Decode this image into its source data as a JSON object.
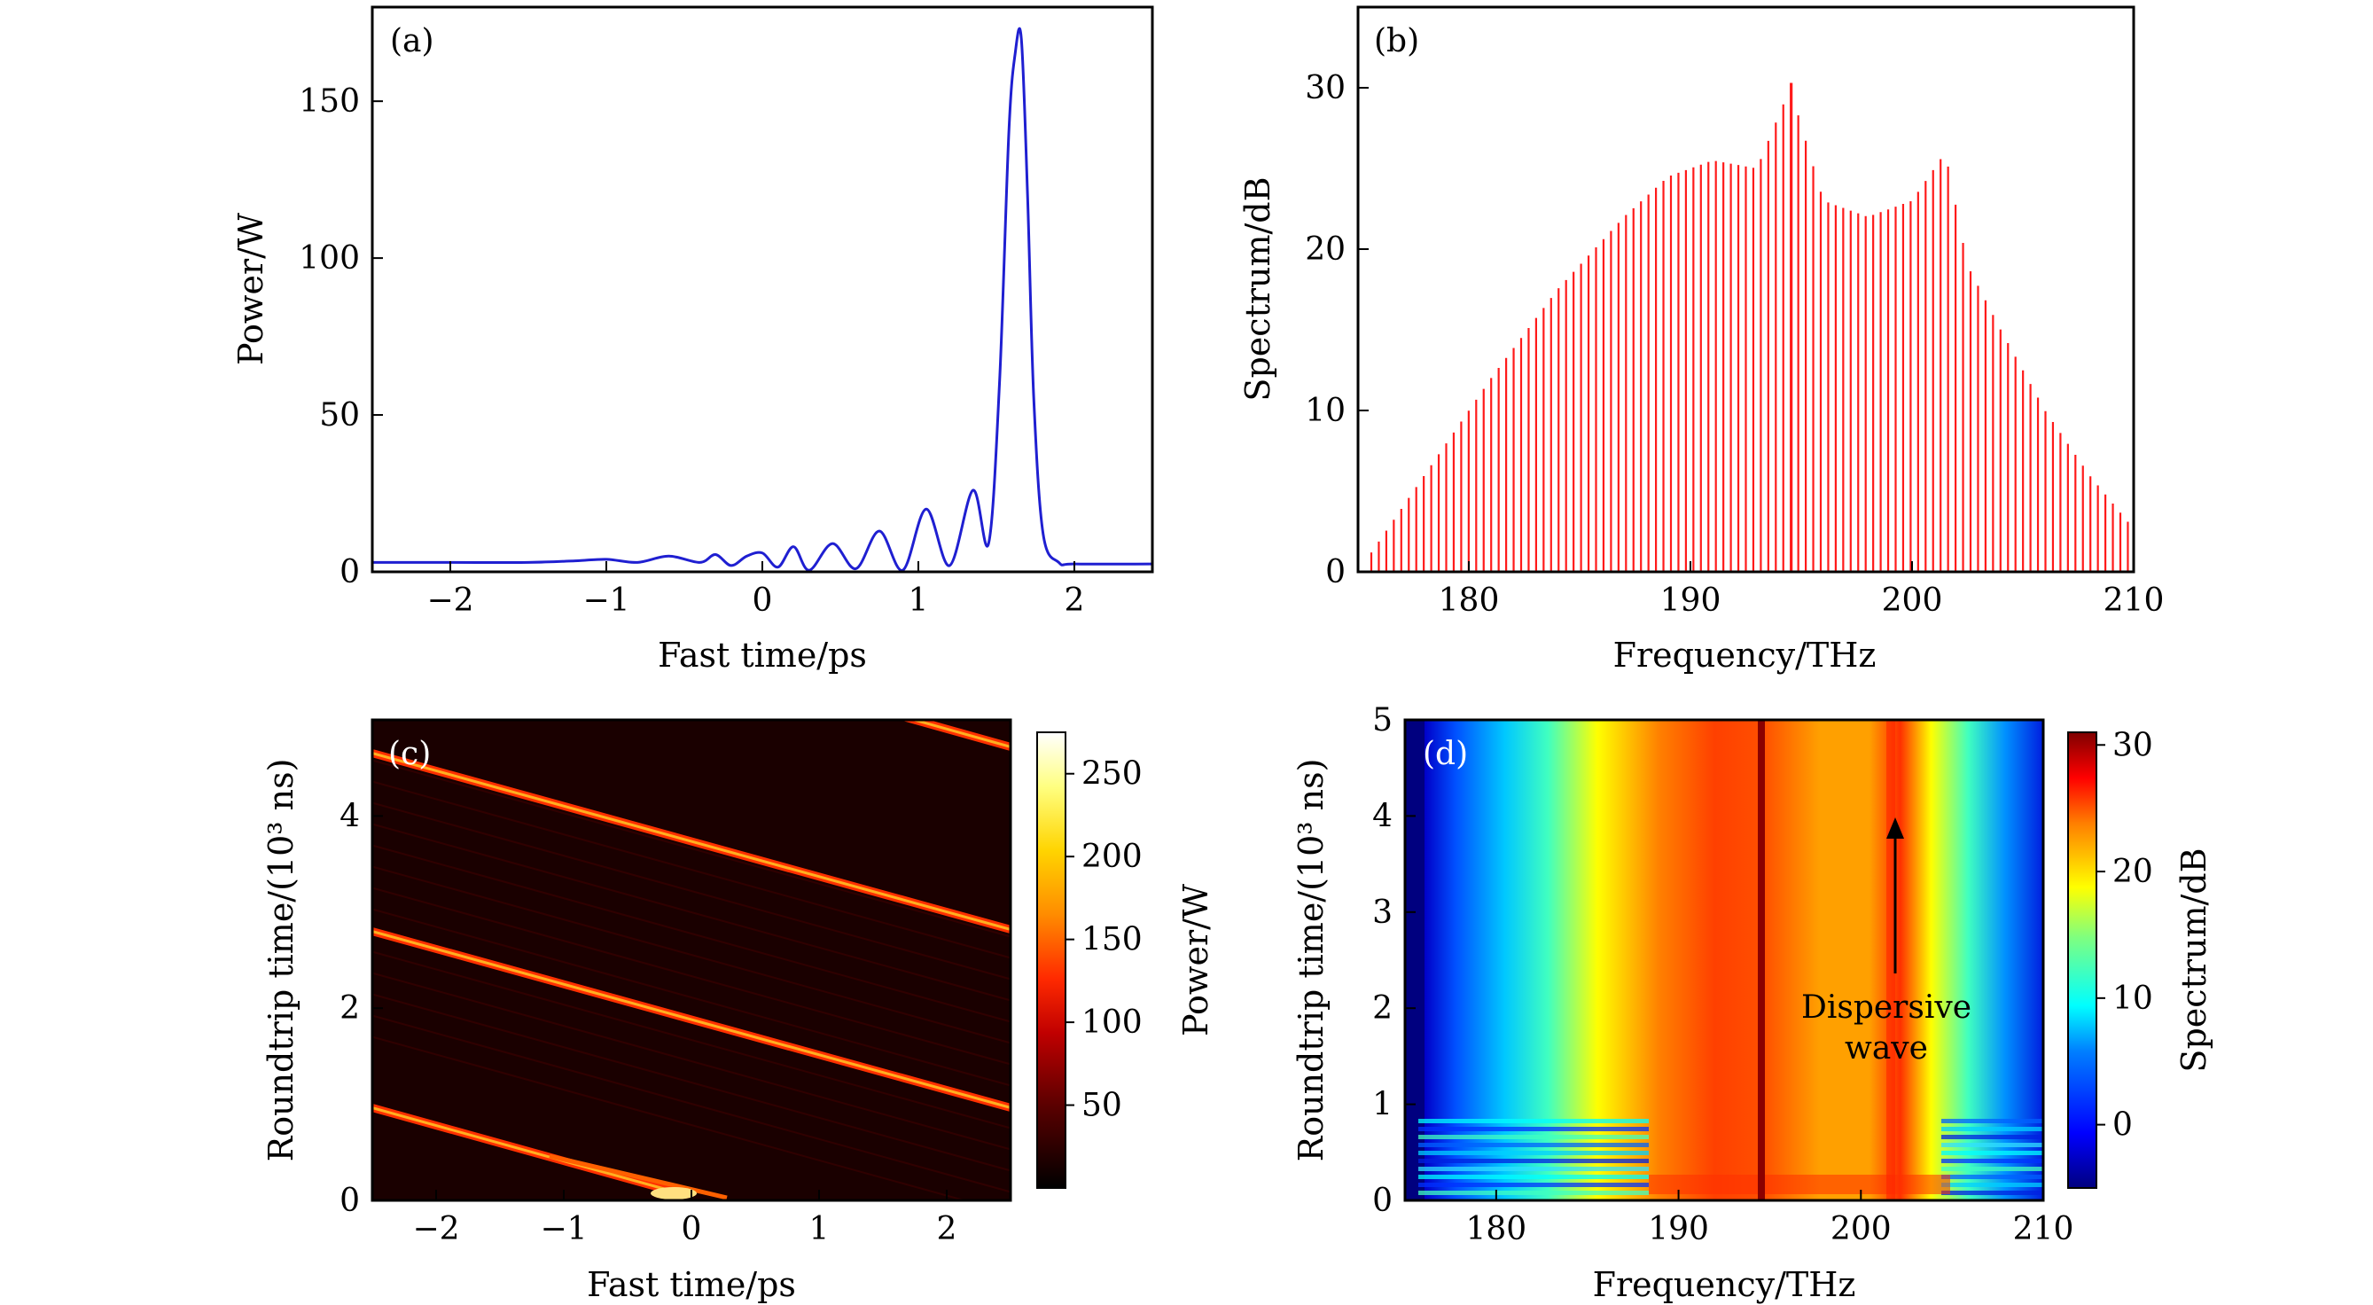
{
  "colors": {
    "panel_a_line": "#1f1fd1",
    "panel_b_line": "#ff1a1a",
    "axis": "#000000",
    "heatmap_c_background": "#1a0000"
  },
  "chart_data": [
    {
      "id": "a",
      "type": "line",
      "panel_label": "(a)",
      "xlabel": "Fast time/ps",
      "ylabel": "Power/W",
      "xlim": [
        -2.5,
        2.5
      ],
      "ylim": [
        0,
        180
      ],
      "xticks": [
        -2,
        -1,
        0,
        1,
        2
      ],
      "xtick_labels": [
        "−2",
        "−1",
        "0",
        "1",
        "2"
      ],
      "yticks": [
        0,
        50,
        100,
        150
      ],
      "ytick_labels": [
        "0",
        "50",
        "100",
        "150"
      ],
      "series": [
        {
          "x": [
            -2.5,
            -2.0,
            -1.5,
            -1.2,
            -1.0,
            -0.8,
            -0.6,
            -0.4,
            -0.3,
            -0.2,
            -0.1,
            0.0,
            0.1,
            0.2,
            0.3,
            0.45,
            0.6,
            0.75,
            0.9,
            1.05,
            1.2,
            1.35,
            1.45,
            1.52,
            1.58,
            1.62,
            1.66,
            1.7,
            1.74,
            1.8,
            1.9,
            2.0,
            2.5
          ],
          "y": [
            3,
            3,
            3,
            3.5,
            4,
            3,
            5,
            3,
            5.5,
            2,
            5,
            6,
            1.5,
            8,
            0.5,
            9,
            1,
            13,
            0.5,
            20,
            2,
            26,
            9,
            60,
            140,
            165,
            170,
            120,
            55,
            12,
            3,
            2.5,
            2.5
          ]
        }
      ]
    },
    {
      "id": "b",
      "type": "bar",
      "panel_label": "(b)",
      "xlabel": "Frequency/THz",
      "ylabel": "Spectrum/dB",
      "xlim": [
        175,
        210
      ],
      "ylim": [
        0,
        35
      ],
      "xticks": [
        180,
        190,
        200,
        210
      ],
      "xtick_labels": [
        "180",
        "190",
        "200",
        "210"
      ],
      "yticks": [
        0,
        10,
        20,
        30
      ],
      "ytick_labels": [
        "0",
        "10",
        "20",
        "30"
      ],
      "series": [
        {
          "envelope_x": [
            175.5,
            178,
            181,
            184,
            187,
            189,
            191,
            193,
            194.5,
            196,
            198,
            200,
            201.5,
            202.5,
            204,
            206,
            208,
            209.8
          ],
          "envelope_y": [
            1,
            6,
            12,
            17.5,
            22,
            24.5,
            25.5,
            25,
            30,
            23,
            22,
            23,
            26,
            19,
            15,
            10,
            6,
            3
          ]
        }
      ]
    },
    {
      "id": "c",
      "type": "heatmap",
      "panel_label": "(c)",
      "xlabel": "Fast time/ps",
      "ylabel": "Roundtrip time/(10³ ns)",
      "xlim": [
        -2.5,
        2.5
      ],
      "ylim": [
        0,
        5
      ],
      "xticks": [
        -2,
        -1,
        0,
        1,
        2
      ],
      "xtick_labels": [
        "−2",
        "−1",
        "0",
        "1",
        "2"
      ],
      "yticks": [
        0,
        2,
        4
      ],
      "ytick_labels": [
        "0",
        "2",
        "4"
      ],
      "colorbar": {
        "label": "Power/W",
        "range": [
          0,
          275
        ],
        "ticks": [
          50,
          100,
          150,
          200,
          250
        ],
        "tick_labels": [
          "50",
          "100",
          "150",
          "200",
          "250"
        ],
        "colormap": [
          "#000000",
          "#5a0000",
          "#c00000",
          "#ff2a00",
          "#ff8c00",
          "#ffd400",
          "#ffff80",
          "#ffffff"
        ]
      }
    },
    {
      "id": "d",
      "type": "heatmap",
      "panel_label": "(d)",
      "xlabel": "Frequency/THz",
      "ylabel": "Roundtrip time/(10³ ns)",
      "xlim": [
        175,
        210
      ],
      "ylim": [
        0,
        5
      ],
      "xticks": [
        180,
        190,
        200,
        210
      ],
      "xtick_labels": [
        "180",
        "190",
        "200",
        "210"
      ],
      "yticks": [
        0,
        1,
        2,
        3,
        4,
        5
      ],
      "ytick_labels": [
        "0",
        "1",
        "2",
        "3",
        "4",
        "5"
      ],
      "annotation": {
        "lines": [
          "Dispersive",
          "wave"
        ]
      },
      "colorbar": {
        "label": "Spectrum/dB",
        "range": [
          -5,
          31
        ],
        "ticks": [
          0,
          10,
          20,
          30
        ],
        "tick_labels": [
          "0",
          "10",
          "20",
          "30"
        ],
        "colormap": [
          "#00007f",
          "#0000ff",
          "#007fff",
          "#00ffff",
          "#7fff7f",
          "#ffff00",
          "#ff7f00",
          "#ff0000",
          "#7f0000"
        ]
      }
    }
  ]
}
